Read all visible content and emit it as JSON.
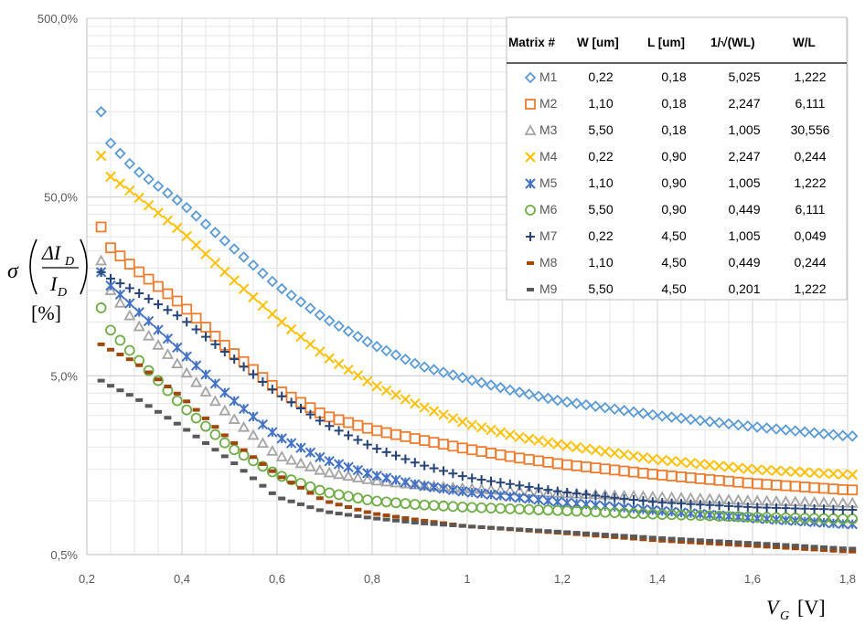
{
  "chart_data": {
    "type": "scatter",
    "x_scale": "linear",
    "y_scale": "log",
    "xlim": [
      0.2,
      1.8
    ],
    "ylim": [
      0.5,
      500
    ],
    "x_ticks": [
      "0,2",
      "0,4",
      "0,6",
      "0,8",
      "1",
      "1,2",
      "1,4",
      "1,6",
      "1,8"
    ],
    "y_ticks": [
      "500,0%",
      "50,0%",
      "5,0%",
      "0,5%"
    ],
    "ylabel": {
      "sigma": "σ",
      "num": "ΔI",
      "num_sub": "D",
      "den": "I",
      "den_sub": "D",
      "unit": "[%]"
    },
    "xlabel": {
      "var": "V",
      "sub": "G",
      "unit": "[V]"
    },
    "legend_table": {
      "headers": [
        "Matrix #",
        "W [um]",
        "L [um]",
        "1/√(WL)",
        "W/L"
      ],
      "rows": [
        {
          "name": "M1",
          "w": "0,22",
          "l": "0,18",
          "inv": "5,025",
          "wl": "1,222"
        },
        {
          "name": "M2",
          "w": "1,10",
          "l": "0,18",
          "inv": "2,247",
          "wl": "6,111"
        },
        {
          "name": "M3",
          "w": "5,50",
          "l": "0,18",
          "inv": "1,005",
          "wl": "30,556"
        },
        {
          "name": "M4",
          "w": "0,22",
          "l": "0,90",
          "inv": "2,247",
          "wl": "0,244"
        },
        {
          "name": "M5",
          "w": "1,10",
          "l": "0,90",
          "inv": "1,005",
          "wl": "1,222"
        },
        {
          "name": "M6",
          "w": "5,50",
          "l": "0,90",
          "inv": "0,449",
          "wl": "6,111"
        },
        {
          "name": "M7",
          "w": "0,22",
          "l": "4,50",
          "inv": "1,005",
          "wl": "0,049"
        },
        {
          "name": "M8",
          "w": "1,10",
          "l": "4,50",
          "inv": "0,449",
          "wl": "0,244"
        },
        {
          "name": "M9",
          "w": "5,50",
          "l": "4,50",
          "inv": "0,201",
          "wl": "1,222"
        }
      ]
    },
    "x_points": {
      "start": 0.23,
      "step": 0.02,
      "end": 1.81
    },
    "series": [
      {
        "name": "M1",
        "marker": "diamond-open",
        "color": "#5B9BD5",
        "curve": [
          [
            0.23,
            150
          ],
          [
            0.25,
            100
          ],
          [
            0.3,
            72
          ],
          [
            0.4,
            46
          ],
          [
            0.5,
            27
          ],
          [
            0.6,
            16
          ],
          [
            0.7,
            10.5
          ],
          [
            0.8,
            7.5
          ],
          [
            0.9,
            5.7
          ],
          [
            1.0,
            4.8
          ],
          [
            1.1,
            4.1
          ],
          [
            1.2,
            3.6
          ],
          [
            1.4,
            3.0
          ],
          [
            1.6,
            2.6
          ],
          [
            1.8,
            2.3
          ]
        ]
      },
      {
        "name": "M2",
        "marker": "square-open",
        "color": "#ED7D31",
        "curve": [
          [
            0.23,
            34
          ],
          [
            0.25,
            26
          ],
          [
            0.3,
            20
          ],
          [
            0.4,
            12.5
          ],
          [
            0.5,
            7
          ],
          [
            0.6,
            4.2
          ],
          [
            0.7,
            3.0
          ],
          [
            0.8,
            2.5
          ],
          [
            0.9,
            2.2
          ],
          [
            1.0,
            1.95
          ],
          [
            1.1,
            1.75
          ],
          [
            1.2,
            1.6
          ],
          [
            1.4,
            1.4
          ],
          [
            1.6,
            1.25
          ],
          [
            1.8,
            1.15
          ]
        ]
      },
      {
        "name": "M3",
        "marker": "triangle-open",
        "color": "#A5A5A5",
        "curve": [
          [
            0.23,
            22
          ],
          [
            0.25,
            15
          ],
          [
            0.3,
            10
          ],
          [
            0.4,
            5.5
          ],
          [
            0.5,
            3.0
          ],
          [
            0.6,
            1.8
          ],
          [
            0.7,
            1.45
          ],
          [
            0.8,
            1.3
          ],
          [
            0.9,
            1.22
          ],
          [
            1.0,
            1.17
          ],
          [
            1.2,
            1.1
          ],
          [
            1.4,
            1.05
          ],
          [
            1.6,
            1.0
          ],
          [
            1.8,
            0.97
          ]
        ]
      },
      {
        "name": "M4",
        "marker": "x",
        "color": "#FFC000",
        "curve": [
          [
            0.23,
            85
          ],
          [
            0.25,
            65
          ],
          [
            0.3,
            52
          ],
          [
            0.4,
            32
          ],
          [
            0.5,
            18
          ],
          [
            0.6,
            10.5
          ],
          [
            0.7,
            6.5
          ],
          [
            0.8,
            4.5
          ],
          [
            0.9,
            3.4
          ],
          [
            1.0,
            2.7
          ],
          [
            1.1,
            2.3
          ],
          [
            1.2,
            2.05
          ],
          [
            1.4,
            1.7
          ],
          [
            1.6,
            1.5
          ],
          [
            1.8,
            1.4
          ]
        ]
      },
      {
        "name": "M5",
        "marker": "star-x",
        "color": "#4472C4",
        "curve": [
          [
            0.23,
            19
          ],
          [
            0.25,
            16
          ],
          [
            0.3,
            12
          ],
          [
            0.4,
            6.8
          ],
          [
            0.5,
            3.8
          ],
          [
            0.6,
            2.3
          ],
          [
            0.7,
            1.7
          ],
          [
            0.8,
            1.4
          ],
          [
            0.9,
            1.22
          ],
          [
            1.0,
            1.12
          ],
          [
            1.2,
            0.98
          ],
          [
            1.4,
            0.88
          ],
          [
            1.6,
            0.8
          ],
          [
            1.8,
            0.74
          ]
        ]
      },
      {
        "name": "M6",
        "marker": "circle-open",
        "color": "#70AD47",
        "curve": [
          [
            0.23,
            12
          ],
          [
            0.25,
            9
          ],
          [
            0.3,
            6.5
          ],
          [
            0.4,
            3.4
          ],
          [
            0.5,
            2.0
          ],
          [
            0.6,
            1.4
          ],
          [
            0.7,
            1.12
          ],
          [
            0.8,
            1.0
          ],
          [
            0.9,
            0.95
          ],
          [
            1.0,
            0.92
          ],
          [
            1.2,
            0.88
          ],
          [
            1.4,
            0.84
          ],
          [
            1.6,
            0.81
          ],
          [
            1.8,
            0.79
          ]
        ]
      },
      {
        "name": "M7",
        "marker": "plus",
        "color": "#264478",
        "curve": [
          [
            0.23,
            19
          ],
          [
            0.25,
            17.5
          ],
          [
            0.3,
            15
          ],
          [
            0.4,
            10.5
          ],
          [
            0.5,
            6.5
          ],
          [
            0.6,
            4.0
          ],
          [
            0.7,
            2.7
          ],
          [
            0.8,
            2.0
          ],
          [
            0.9,
            1.6
          ],
          [
            1.0,
            1.35
          ],
          [
            1.2,
            1.12
          ],
          [
            1.4,
            0.98
          ],
          [
            1.6,
            0.92
          ],
          [
            1.8,
            0.89
          ]
        ]
      },
      {
        "name": "M8",
        "marker": "dash",
        "color": "#9E480E",
        "curve": [
          [
            0.23,
            7.5
          ],
          [
            0.25,
            7.0
          ],
          [
            0.3,
            6.0
          ],
          [
            0.4,
            3.8
          ],
          [
            0.5,
            2.2
          ],
          [
            0.6,
            1.4
          ],
          [
            0.7,
            1.0
          ],
          [
            0.8,
            0.85
          ],
          [
            0.9,
            0.78
          ],
          [
            1.0,
            0.72
          ],
          [
            1.2,
            0.66
          ],
          [
            1.4,
            0.6
          ],
          [
            1.6,
            0.56
          ],
          [
            1.8,
            0.52
          ]
        ]
      },
      {
        "name": "M9",
        "marker": "dash",
        "color": "#595959",
        "curve": [
          [
            0.23,
            4.7
          ],
          [
            0.25,
            4.4
          ],
          [
            0.3,
            3.8
          ],
          [
            0.4,
            2.6
          ],
          [
            0.5,
            1.7
          ],
          [
            0.6,
            1.05
          ],
          [
            0.7,
            0.87
          ],
          [
            0.8,
            0.8
          ],
          [
            0.9,
            0.75
          ],
          [
            1.0,
            0.72
          ],
          [
            1.2,
            0.67
          ],
          [
            1.4,
            0.62
          ],
          [
            1.6,
            0.58
          ],
          [
            1.8,
            0.54
          ]
        ]
      }
    ]
  }
}
